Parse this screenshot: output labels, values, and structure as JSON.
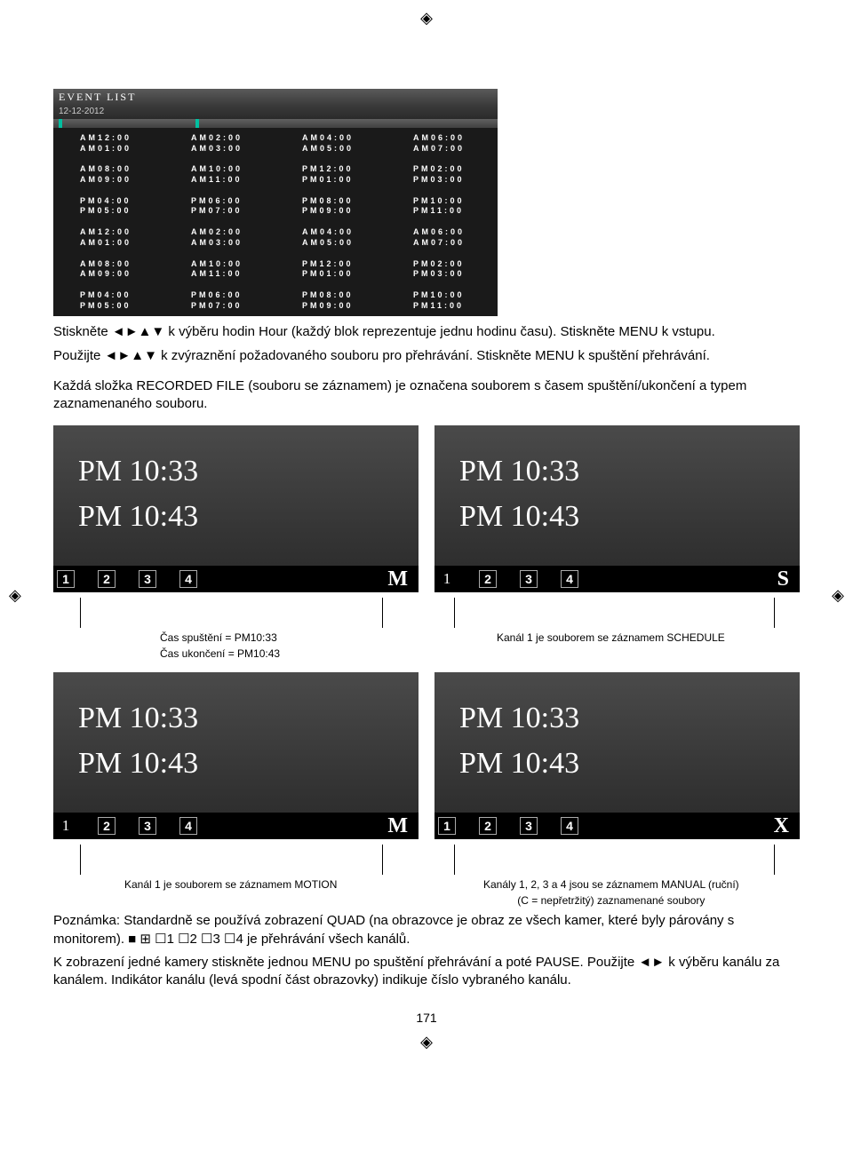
{
  "registration_mark": "◈",
  "event_list": {
    "title": "EVENT LIST",
    "date": "12-12-2012",
    "blocks": [
      [
        [
          "AM12:00",
          "AM01:00"
        ],
        [
          "AM02:00",
          "AM03:00"
        ],
        [
          "AM04:00",
          "AM05:00"
        ],
        [
          "AM06:00",
          "AM07:00"
        ]
      ],
      [
        [
          "AM08:00",
          "AM09:00"
        ],
        [
          "AM10:00",
          "AM11:00"
        ],
        [
          "PM12:00",
          "PM01:00"
        ],
        [
          "PM02:00",
          "PM03:00"
        ]
      ],
      [
        [
          "PM04:00",
          "PM05:00"
        ],
        [
          "PM06:00",
          "PM07:00"
        ],
        [
          "PM08:00",
          "PM09:00"
        ],
        [
          "PM10:00",
          "PM11:00"
        ]
      ],
      [
        [
          "AM12:00",
          "AM01:00"
        ],
        [
          "AM02:00",
          "AM03:00"
        ],
        [
          "AM04:00",
          "AM05:00"
        ],
        [
          "AM06:00",
          "AM07:00"
        ]
      ],
      [
        [
          "AM08:00",
          "AM09:00"
        ],
        [
          "AM10:00",
          "AM11:00"
        ],
        [
          "PM12:00",
          "PM01:00"
        ],
        [
          "PM02:00",
          "PM03:00"
        ]
      ],
      [
        [
          "PM04:00",
          "PM05:00"
        ],
        [
          "PM06:00",
          "PM07:00"
        ],
        [
          "PM08:00",
          "PM09:00"
        ],
        [
          "PM10:00",
          "PM11:00"
        ]
      ]
    ]
  },
  "para1": "Stiskněte ◄►▲▼ k výběru hodin Hour (každý blok reprezentuje jednu hodinu času). Stiskněte MENU k vstupu.",
  "para2": "Použijte ◄►▲▼ k zvýraznění požadovaného souboru pro přehrávání. Stiskněte MENU k spuštění přehrávání.",
  "para3": "Každá složka RECORDED FILE (souboru se záznamem) je označena souborem s časem spuštění/ukončení a typem zaznamenaného souboru.",
  "thumbs": [
    {
      "t1": "PM 10:33",
      "t2": "PM 10:43",
      "bar": [
        {
          "t": "box",
          "v": "1"
        },
        {
          "t": "box",
          "v": "2"
        },
        {
          "t": "box",
          "v": "3"
        },
        {
          "t": "box",
          "v": "4"
        },
        {
          "t": "letter",
          "v": "M"
        }
      ]
    },
    {
      "t1": "PM 10:33",
      "t2": "PM 10:43",
      "bar": [
        {
          "t": "plain",
          "v": "1"
        },
        {
          "t": "box",
          "v": "2"
        },
        {
          "t": "box",
          "v": "3"
        },
        {
          "t": "box",
          "v": "4"
        },
        {
          "t": "letter",
          "v": "S"
        }
      ]
    },
    {
      "t1": "PM 10:33",
      "t2": "PM 10:43",
      "bar": [
        {
          "t": "plain",
          "v": "1"
        },
        {
          "t": "box",
          "v": "2"
        },
        {
          "t": "box",
          "v": "3"
        },
        {
          "t": "box",
          "v": "4"
        },
        {
          "t": "letter",
          "v": "M"
        }
      ]
    },
    {
      "t1": "PM 10:33",
      "t2": "PM 10:43",
      "bar": [
        {
          "t": "box",
          "v": "1"
        },
        {
          "t": "box",
          "v": "2"
        },
        {
          "t": "box",
          "v": "3"
        },
        {
          "t": "box",
          "v": "4"
        },
        {
          "t": "letter",
          "v": "X"
        }
      ]
    }
  ],
  "callouts": {
    "row1": {
      "left": [
        "Čas spuštění = PM10:33",
        "Čas ukončení = PM10:43"
      ],
      "right": "Kanál 1 je souborem se záznamem SCHEDULE"
    },
    "row2": {
      "left": "Kanál 1 je souborem se záznamem MOTION",
      "right": [
        "Kanály 1, 2, 3 a 4 jsou se záznamem MANUAL (ruční)",
        "(C = nepřetržitý) zaznamenané soubory"
      ]
    }
  },
  "para4": "Poznámka: Standardně se používá zobrazení QUAD (na obrazovce je obraz ze všech kamer, které byly párovány s monitorem). ■ ⊞ ☐1 ☐2 ☐3 ☐4 je přehrávání všech kanálů.",
  "para5": "K zobrazení jedné kamery stiskněte jednou MENU po spuštění přehrávání a poté PAUSE. Použijte ◄► k výběru kanálu za kanálem. Indikátor kanálu (levá spodní část obrazovky) indikuje číslo vybraného kanálu.",
  "page": "171"
}
